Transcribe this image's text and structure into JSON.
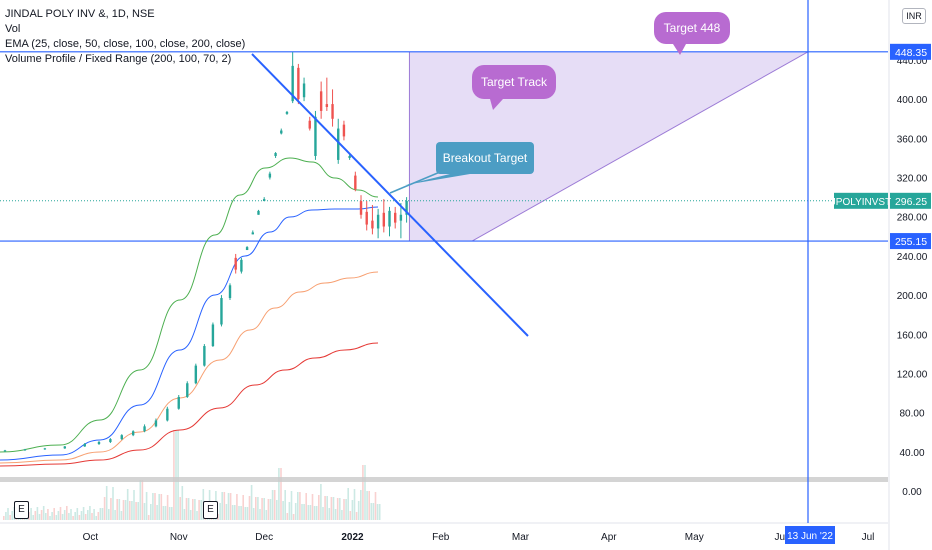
{
  "legend": {
    "line1": "JINDAL POLY INV &, 1D, NSE",
    "line2": "Vol",
    "line3": "EMA (25, close, 50, close, 100, close, 200, close)",
    "line4": "Volume Profile / Fixed Range (200, 100, 70, 2)"
  },
  "currency_button": "INR",
  "earnings_badges": [
    "E",
    "E"
  ],
  "chart_data": {
    "type": "candlestick",
    "x_ticks": [
      "Oct",
      "Nov",
      "Dec",
      "2022",
      "Feb",
      "Mar",
      "Apr",
      "May",
      "Jun",
      "Jul"
    ],
    "y_ticks": [
      0,
      40,
      80,
      120,
      160,
      200,
      240,
      280,
      320,
      360,
      400,
      440
    ],
    "y_tick_labels": [
      "0.00",
      "40.00",
      "80.00",
      "120.00",
      "160.00",
      "200.00",
      "240.00",
      "280.00",
      "320.00",
      "360.00",
      "400.00",
      "440.00"
    ],
    "ylim": [
      -6,
      475
    ],
    "price_labels": [
      {
        "text": "448.35",
        "value": 448.35,
        "color": "#2962ff"
      },
      {
        "text": "296.25",
        "value": 296.25,
        "color": "#26a69a"
      },
      {
        "text": "255.15",
        "value": 255.15,
        "color": "#2962ff"
      }
    ],
    "symbol_tag": "JPOLYINVST",
    "date_marker": "13 Jun '22",
    "annotations": [
      {
        "text": "Target 448",
        "bg": "#b86bd1"
      },
      {
        "text": "Target Track",
        "bg": "#b86bd1"
      },
      {
        "text": "Breakout Target",
        "bg": "#4c9dc4"
      }
    ],
    "horizontal_levels": [
      448.35,
      255.15
    ],
    "ema_colors": [
      "#4caf50",
      "#2962ff",
      "#f7a072",
      "#e53935"
    ],
    "candle_colors": {
      "up": "#26a69a",
      "down": "#ef5350"
    },
    "candles": [
      {
        "date": "2021-09-01",
        "o": 41,
        "h": 42,
        "l": 40,
        "c": 41.5
      },
      {
        "date": "2021-09-08",
        "o": 41.5,
        "h": 43,
        "l": 41,
        "c": 42.5
      },
      {
        "date": "2021-09-15",
        "o": 42.5,
        "h": 44,
        "l": 42,
        "c": 43.5
      },
      {
        "date": "2021-09-22",
        "o": 43.5,
        "h": 46,
        "l": 43,
        "c": 45.5
      },
      {
        "date": "2021-09-29",
        "o": 45.5,
        "h": 49,
        "l": 45,
        "c": 48
      },
      {
        "date": "2021-10-04",
        "o": 48,
        "h": 51,
        "l": 47,
        "c": 50
      },
      {
        "date": "2021-10-08",
        "o": 50,
        "h": 54,
        "l": 49,
        "c": 53
      },
      {
        "date": "2021-10-12",
        "o": 53,
        "h": 58,
        "l": 52,
        "c": 57
      },
      {
        "date": "2021-10-16",
        "o": 57,
        "h": 62,
        "l": 56,
        "c": 61
      },
      {
        "date": "2021-10-20",
        "o": 61,
        "h": 68,
        "l": 60,
        "c": 66
      },
      {
        "date": "2021-10-24",
        "o": 66,
        "h": 74,
        "l": 65,
        "c": 72
      },
      {
        "date": "2021-10-28",
        "o": 72,
        "h": 86,
        "l": 71,
        "c": 84
      },
      {
        "date": "2021-11-01",
        "o": 84,
        "h": 98,
        "l": 83,
        "c": 96
      },
      {
        "date": "2021-11-04",
        "o": 96,
        "h": 112,
        "l": 95,
        "c": 110
      },
      {
        "date": "2021-11-07",
        "o": 110,
        "h": 130,
        "l": 109,
        "c": 128
      },
      {
        "date": "2021-11-10",
        "o": 128,
        "h": 150,
        "l": 127,
        "c": 148
      },
      {
        "date": "2021-11-13",
        "o": 148,
        "h": 172,
        "l": 147,
        "c": 170
      },
      {
        "date": "2021-11-16",
        "o": 170,
        "h": 200,
        "l": 168,
        "c": 197
      },
      {
        "date": "2021-11-19",
        "o": 197,
        "h": 212,
        "l": 195,
        "c": 210
      },
      {
        "date": "2021-11-21",
        "o": 238,
        "h": 242,
        "l": 222,
        "c": 226
      },
      {
        "date": "2021-11-23",
        "o": 224,
        "h": 238,
        "l": 222,
        "c": 236
      },
      {
        "date": "2021-11-25",
        "o": 246,
        "h": 250,
        "l": 246,
        "c": 249
      },
      {
        "date": "2021-11-27",
        "o": 262,
        "h": 266,
        "l": 262,
        "c": 264
      },
      {
        "date": "2021-11-29",
        "o": 282,
        "h": 287,
        "l": 282,
        "c": 286
      },
      {
        "date": "2021-12-01",
        "o": 296,
        "h": 300,
        "l": 296,
        "c": 298
      },
      {
        "date": "2021-12-03",
        "o": 320,
        "h": 326,
        "l": 318,
        "c": 324
      },
      {
        "date": "2021-12-05",
        "o": 342,
        "h": 346,
        "l": 340,
        "c": 345
      },
      {
        "date": "2021-12-07",
        "o": 365,
        "h": 370,
        "l": 364,
        "c": 368
      },
      {
        "date": "2021-12-09",
        "o": 385,
        "h": 388,
        "l": 384,
        "c": 387
      },
      {
        "date": "2021-12-11",
        "o": 398,
        "h": 448,
        "l": 396,
        "c": 434
      },
      {
        "date": "2021-12-13",
        "o": 432,
        "h": 436,
        "l": 395,
        "c": 400
      },
      {
        "date": "2021-12-15",
        "o": 402,
        "h": 422,
        "l": 398,
        "c": 416
      },
      {
        "date": "2021-12-17",
        "o": 378,
        "h": 382,
        "l": 368,
        "c": 370
      },
      {
        "date": "2021-12-19",
        "o": 342,
        "h": 388,
        "l": 338,
        "c": 382
      },
      {
        "date": "2021-12-21",
        "o": 408,
        "h": 418,
        "l": 380,
        "c": 388
      },
      {
        "date": "2021-12-23",
        "o": 395,
        "h": 422,
        "l": 388,
        "c": 392
      },
      {
        "date": "2021-12-25",
        "o": 395,
        "h": 410,
        "l": 372,
        "c": 380
      },
      {
        "date": "2021-12-27",
        "o": 338,
        "h": 380,
        "l": 334,
        "c": 370
      },
      {
        "date": "2021-12-29",
        "o": 374,
        "h": 378,
        "l": 358,
        "c": 362
      },
      {
        "date": "2021-12-31",
        "o": 340,
        "h": 344,
        "l": 338,
        "c": 342
      },
      {
        "date": "2022-01-02",
        "o": 322,
        "h": 326,
        "l": 306,
        "c": 308
      },
      {
        "date": "2022-01-04",
        "o": 296,
        "h": 302,
        "l": 278,
        "c": 282
      },
      {
        "date": "2022-01-06",
        "o": 285,
        "h": 296,
        "l": 266,
        "c": 272
      },
      {
        "date": "2022-01-08",
        "o": 276,
        "h": 292,
        "l": 262,
        "c": 268
      },
      {
        "date": "2022-01-10",
        "o": 268,
        "h": 288,
        "l": 258,
        "c": 282
      },
      {
        "date": "2022-01-12",
        "o": 284,
        "h": 298,
        "l": 264,
        "c": 270
      },
      {
        "date": "2022-01-14",
        "o": 270,
        "h": 290,
        "l": 260,
        "c": 286
      },
      {
        "date": "2022-01-16",
        "o": 284,
        "h": 290,
        "l": 268,
        "c": 274
      },
      {
        "date": "2022-01-18",
        "o": 276,
        "h": 294,
        "l": 258,
        "c": 282
      },
      {
        "date": "2022-01-20",
        "o": 282,
        "h": 300,
        "l": 274,
        "c": 296
      }
    ]
  }
}
